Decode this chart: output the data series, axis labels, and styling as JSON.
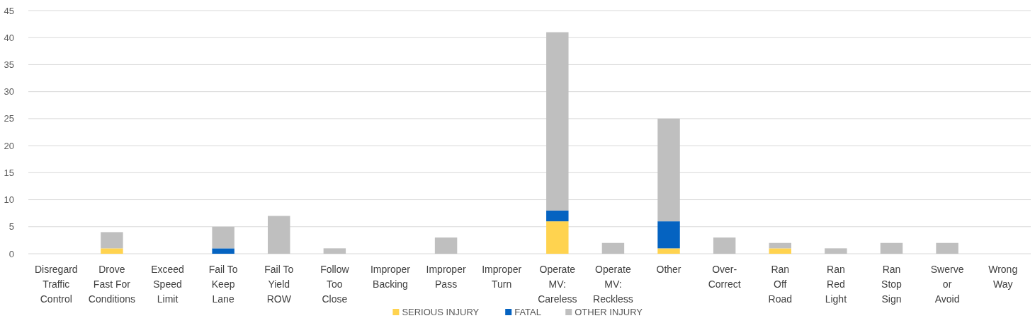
{
  "chart_data": {
    "type": "bar",
    "stacked": true,
    "categories": [
      "Disregard\nTraffic\nControl",
      "Drove\nFast For\nConditions",
      "Exceed\nSpeed\nLimit",
      "Fail To\nKeep\nLane",
      "Fail To\nYield\nROW",
      "Follow\nToo\nClose",
      "Improper\nBacking",
      "Improper\nPass",
      "Improper\nTurn",
      "Operate\nMV:\nCareless",
      "Operate\nMV:\nReckless",
      "Other",
      "Over-\nCorrect",
      "Ran\nOff\nRoad",
      "Ran\nRed\nLight",
      "Ran\nStop\nSign",
      "Swerve\nor\nAvoid",
      "Wrong\nWay"
    ],
    "series": [
      {
        "name": "SERIOUS INJURY",
        "color": "#ffd34f",
        "values": [
          0,
          1,
          0,
          0,
          0,
          0,
          0,
          0,
          0,
          6,
          0,
          1,
          0,
          1,
          0,
          0,
          0,
          0
        ]
      },
      {
        "name": "FATAL",
        "color": "#0563c1",
        "values": [
          0,
          0,
          0,
          1,
          0,
          0,
          0,
          0,
          0,
          2,
          0,
          5,
          0,
          0,
          0,
          0,
          0,
          0
        ]
      },
      {
        "name": "OTHER INJURY",
        "color": "#bfbfbf",
        "values": [
          0,
          3,
          0,
          4,
          7,
          1,
          0,
          3,
          0,
          33,
          2,
          19,
          3,
          1,
          1,
          2,
          2,
          0
        ]
      }
    ],
    "ylim": [
      0,
      45
    ],
    "yticks": [
      0,
      5,
      10,
      15,
      20,
      25,
      30,
      35,
      40,
      45
    ],
    "grid": "y",
    "legend": "bottom"
  }
}
